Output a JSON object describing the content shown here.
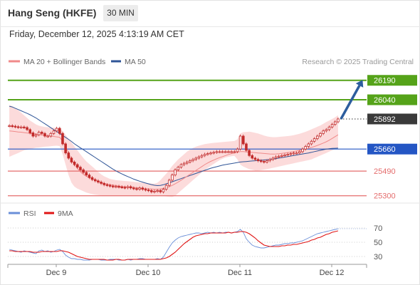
{
  "header": {
    "title": "Hang Seng (HKFE)",
    "timeframe": "30 MIN",
    "datetime": "Friday, December 12, 2025 4:13:19 AM CET"
  },
  "credit": "Research © 2025 Trading Central",
  "colors": {
    "green_level": "#55a319",
    "dark_level": "#3a3a3a",
    "blue_level": "#2456c4",
    "red_level": "#e46c6c",
    "ma20": "#f08a8a",
    "band_fill": "#fbd5d5",
    "ma50": "#2f5597",
    "candle": "#c22a2a",
    "rsi": "#6a8fd8",
    "rsi_ma": "#e01515",
    "arrow": "#2c5d9e"
  },
  "chart_data": [
    {
      "type": "line",
      "subtype": "candlestick",
      "legend": [
        {
          "label": "MA 20 + Bollinger Bands",
          "color": "#f08a8a"
        },
        {
          "label": "MA 50",
          "color": "#2f5597"
        }
      ],
      "legend_position": "top-left",
      "x_ticks": [
        "Dec 9",
        "Dec 10",
        "Dec 11",
        "Dec 12"
      ],
      "ylim": [
        25260,
        26260
      ],
      "levels": [
        {
          "value": 26190,
          "label": "26190",
          "kind": "resistance",
          "style": "green"
        },
        {
          "value": 26040,
          "label": "26040",
          "kind": "resistance",
          "style": "green"
        },
        {
          "value": 25892,
          "label": "25892",
          "kind": "last_price",
          "style": "dark"
        },
        {
          "value": 25660,
          "label": "25660",
          "kind": "pivot",
          "style": "blue"
        },
        {
          "value": 25490,
          "label": "25490",
          "kind": "support",
          "style": "red"
        },
        {
          "value": 25300,
          "label": "25300",
          "kind": "support",
          "style": "red"
        }
      ],
      "close": [
        25840,
        25836,
        25832,
        25828,
        25830,
        25826,
        25810,
        25785,
        25760,
        25770,
        25790,
        25780,
        25760,
        25760,
        25780,
        25800,
        25820,
        25780,
        25700,
        25630,
        25590,
        25560,
        25540,
        25520,
        25500,
        25480,
        25460,
        25440,
        25425,
        25415,
        25405,
        25395,
        25385,
        25380,
        25375,
        25370,
        25372,
        25368,
        25365,
        25362,
        25370,
        25360,
        25355,
        25350,
        25360,
        25350,
        25345,
        25340,
        25330,
        25335,
        25340,
        25330,
        25350,
        25380,
        25420,
        25460,
        25500,
        25520,
        25540,
        25550,
        25560,
        25570,
        25580,
        25590,
        25600,
        25610,
        25620,
        25625,
        25630,
        25635,
        25640,
        25640,
        25640,
        25640,
        25640,
        25640,
        25640,
        25660,
        25760,
        25700,
        25650,
        25610,
        25590,
        25580,
        25570,
        25565,
        25560,
        25570,
        25580,
        25590,
        25600,
        25605,
        25610,
        25615,
        25620,
        25625,
        25630,
        25630,
        25640,
        25660,
        25680,
        25700,
        25720,
        25740,
        25760,
        25780,
        25800,
        25810,
        25830,
        25850,
        25870,
        25892
      ],
      "ma20": [
        25800,
        25798,
        25795,
        25792,
        25790,
        25787,
        25784,
        25781,
        25778,
        25775,
        25772,
        25769,
        25766,
        25763,
        25760,
        25757,
        25754,
        25751,
        25720,
        25680,
        25630,
        25580,
        25540,
        25510,
        25485,
        25465,
        25450,
        25440,
        25430,
        25420,
        25410,
        25402,
        25395,
        25390,
        25386,
        25382,
        25378,
        25375,
        25372,
        25370,
        25368,
        25366,
        25364,
        25362,
        25360,
        25358,
        25356,
        25354,
        25352,
        25350,
        25350,
        25352,
        25356,
        25362,
        25370,
        25380,
        25392,
        25405,
        25420,
        25435,
        25450,
        25465,
        25480,
        25495,
        25510,
        25525,
        25540,
        25553,
        25565,
        25575,
        25585,
        25594,
        25602,
        25610,
        25618,
        25625,
        25630,
        25635,
        25640,
        25640,
        25638,
        25636,
        25634,
        25632,
        25630,
        25628,
        25626,
        25624,
        25622,
        25621,
        25622,
        25624,
        25627,
        25630,
        25633,
        25636,
        25640,
        25645,
        25650,
        25655,
        25660,
        25666,
        25673,
        25680,
        25688,
        25697,
        25706,
        25716,
        25728,
        25742,
        25756,
        25770
      ],
      "bb_upper": [
        26000,
        25990,
        25975,
        25960,
        25940,
        25920,
        25900,
        25880,
        25865,
        25850,
        25840,
        25835,
        25830,
        25828,
        25826,
        25825,
        25822,
        25820,
        25800,
        25770,
        25740,
        25710,
        25680,
        25650,
        25620,
        25590,
        25565,
        25545,
        25525,
        25505,
        25485,
        25465,
        25450,
        25440,
        25430,
        25425,
        25420,
        25418,
        25416,
        25414,
        25412,
        25410,
        25408,
        25405,
        25403,
        25400,
        25398,
        25396,
        25394,
        25393,
        25400,
        25420,
        25445,
        25470,
        25500,
        25530,
        25555,
        25580,
        25600,
        25620,
        25640,
        25655,
        25668,
        25678,
        25686,
        25692,
        25698,
        25702,
        25705,
        25708,
        25710,
        25712,
        25714,
        25716,
        25718,
        25720,
        25722,
        25735,
        25780,
        25790,
        25792,
        25794,
        25790,
        25785,
        25780,
        25772,
        25764,
        25758,
        25754,
        25752,
        25752,
        25754,
        25756,
        25758,
        25760,
        25763,
        25767,
        25772,
        25778,
        25785,
        25793,
        25802,
        25812,
        25822,
        25832,
        25842,
        25855,
        25868,
        25880,
        25892,
        25905,
        25920
      ],
      "bb_lower": [
        25600,
        25610,
        25620,
        25630,
        25640,
        25650,
        25655,
        25660,
        25665,
        25670,
        25672,
        25675,
        25678,
        25680,
        25682,
        25684,
        25686,
        25683,
        25620,
        25540,
        25460,
        25400,
        25370,
        25355,
        25345,
        25335,
        25325,
        25318,
        25312,
        25308,
        25305,
        25302,
        25300,
        25300,
        25300,
        25300,
        25300,
        25300,
        25300,
        25300,
        25300,
        25300,
        25300,
        25300,
        25300,
        25300,
        25300,
        25300,
        25300,
        25300,
        25300,
        25298,
        25296,
        25294,
        25292,
        25290,
        25300,
        25320,
        25340,
        25360,
        25380,
        25400,
        25420,
        25440,
        25460,
        25480,
        25500,
        25515,
        25530,
        25545,
        25560,
        25575,
        25585,
        25595,
        25600,
        25605,
        25608,
        25580,
        25540,
        25525,
        25515,
        25505,
        25500,
        25495,
        25495,
        25498,
        25502,
        25505,
        25510,
        25515,
        25520,
        25525,
        25530,
        25535,
        25540,
        25545,
        25550,
        25555,
        25560,
        25565,
        25570,
        25575,
        25580,
        25590,
        25600,
        25610,
        25620,
        25630,
        25640,
        25650,
        25660,
        25670
      ],
      "ma50": [
        25990,
        25985,
        25975,
        25965,
        25955,
        25945,
        25935,
        25925,
        25912,
        25900,
        25885,
        25870,
        25855,
        25840,
        25825,
        25810,
        25795,
        25780,
        25765,
        25750,
        25735,
        25718,
        25700,
        25685,
        25670,
        25655,
        25640,
        25625,
        25610,
        25595,
        25580,
        25565,
        25550,
        25535,
        25520,
        25505,
        25492,
        25480,
        25468,
        25458,
        25448,
        25438,
        25428,
        25420,
        25412,
        25405,
        25398,
        25392,
        25386,
        25381,
        25378,
        25380,
        25385,
        25392,
        25400,
        25408,
        25416,
        25424,
        25432,
        25440,
        25448,
        25456,
        25464,
        25472,
        25480,
        25488,
        25496,
        25504,
        25512,
        25518,
        25524,
        25530,
        25536,
        25540,
        25544,
        25548,
        25552,
        25556,
        25560,
        25562,
        25564,
        25566,
        25568,
        25570,
        25572,
        25574,
        25576,
        25578,
        25580,
        25583,
        25586,
        25590,
        25594,
        25598,
        25602,
        25606,
        25610,
        25614,
        25618,
        25622,
        25626,
        25630,
        25635,
        25640,
        25645,
        25650,
        25655,
        25660,
        25663,
        25665,
        25666,
        25667
      ]
    },
    {
      "type": "line",
      "legend": [
        {
          "label": "RSI",
          "color": "#6a8fd8"
        },
        {
          "label": "9MA",
          "color": "#e01515"
        }
      ],
      "y_ticks": [
        70,
        50,
        30
      ],
      "ylim": [
        20,
        85
      ],
      "rsi": [
        40,
        39,
        38,
        37,
        36,
        38,
        37,
        36,
        35,
        34,
        38,
        39,
        37,
        38,
        36,
        37,
        39,
        40,
        37,
        32,
        29,
        27,
        27,
        26,
        26,
        25,
        25,
        25,
        26,
        26,
        26,
        25,
        25,
        25,
        26,
        26,
        26,
        25,
        25,
        25,
        26,
        25,
        26,
        26,
        27,
        27,
        26,
        26,
        26,
        26,
        27,
        26,
        29,
        36,
        43,
        49,
        53,
        56,
        58,
        59,
        60,
        61,
        62,
        63,
        63,
        62,
        63,
        64,
        63,
        64,
        63,
        64,
        63,
        64,
        64,
        63,
        64,
        65,
        68,
        64,
        55,
        50,
        46,
        44,
        43,
        42,
        42,
        43,
        44,
        45,
        46,
        46,
        47,
        48,
        48,
        49,
        49,
        50,
        51,
        52,
        54,
        56,
        58,
        60,
        62,
        63,
        64,
        65,
        66,
        67,
        68,
        69
      ],
      "rsi_ma": [
        38,
        38,
        37,
        37,
        37,
        37,
        37,
        37,
        36,
        36,
        36,
        37,
        37,
        37,
        37,
        37,
        37,
        38,
        38,
        37,
        36,
        34,
        32,
        30,
        29,
        28,
        27,
        26,
        26,
        26,
        26,
        26,
        26,
        25,
        25,
        25,
        26,
        26,
        25,
        25,
        26,
        26,
        26,
        26,
        26,
        26,
        26,
        26,
        26,
        26,
        26,
        26,
        27,
        28,
        30,
        33,
        36,
        40,
        44,
        48,
        51,
        54,
        57,
        59,
        60,
        61,
        62,
        62,
        63,
        63,
        63,
        63,
        63,
        63,
        64,
        63,
        64,
        64,
        65,
        65,
        64,
        62,
        59,
        56,
        52,
        49,
        46,
        45,
        44,
        44,
        44,
        44,
        45,
        45,
        46,
        46,
        47,
        47,
        48,
        49,
        50,
        51,
        53,
        54,
        56,
        57,
        59,
        61,
        62,
        64,
        65,
        66
      ]
    }
  ]
}
